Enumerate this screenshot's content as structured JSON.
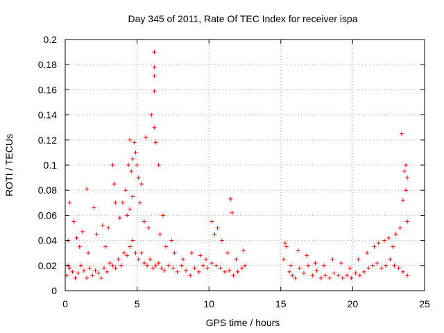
{
  "chart_data": {
    "type": "scatter",
    "title": "Day 345 of 2011, Rate Of TEC Index for receiver ispa",
    "xlabel": "GPS time / hours",
    "ylabel": "ROTI / TECUs",
    "xlim": [
      0,
      25
    ],
    "ylim": [
      0,
      0.2
    ],
    "xticks": [
      0,
      5,
      10,
      15,
      20,
      25
    ],
    "xtick_labels": [
      "0",
      "5",
      "10",
      "15",
      "20",
      "25"
    ],
    "yticks": [
      0,
      0.02,
      0.04,
      0.06,
      0.08,
      0.1,
      0.12,
      0.14,
      0.16,
      0.18,
      0.2
    ],
    "ytick_labels": [
      "0",
      "0.02",
      "0.04",
      "0.06",
      "0.08",
      "0.1",
      "0.12",
      "0.14",
      "0.16",
      "0.18",
      "0.2"
    ],
    "grid": true,
    "marker": "plus",
    "color": "#ff0000",
    "data_gap_hours": [
      12.6,
      15.1
    ],
    "series": [
      {
        "name": "ROTI",
        "x": [
          0.1,
          0.2,
          0.3,
          0.5,
          0.7,
          0.9,
          1.1,
          1.3,
          1.5,
          1.7,
          1.9,
          2.1,
          2.3,
          2.5,
          2.7,
          2.9,
          3.1,
          3.3,
          3.5,
          3.7,
          3.9,
          4.1,
          4.3,
          4.5,
          4.7,
          4.9,
          5.1,
          5.3,
          5.5,
          5.7,
          5.9,
          6.1,
          6.3,
          6.5,
          6.7,
          6.9,
          7.2,
          7.5,
          7.8,
          8.1,
          8.4,
          8.7,
          9.0,
          9.3,
          9.6,
          9.9,
          10.2,
          10.5,
          10.8,
          11.1,
          11.4,
          11.7,
          12.0,
          12.3,
          12.5,
          0.3,
          0.8,
          1.2,
          1.5,
          2.0,
          2.6,
          3.3,
          3.4,
          3.5,
          4.2,
          4.4,
          4.5,
          4.6,
          4.7,
          4.8,
          4.9,
          5.0,
          5.1,
          5.3,
          5.6,
          6.0,
          6.2,
          6.2,
          6.2,
          6.2,
          6.2,
          6.3,
          6.5,
          6.8,
          7.4,
          10.2,
          10.6,
          11.5,
          11.6,
          0.2,
          0.6,
          1.0,
          1.6,
          2.2,
          2.8,
          3.0,
          3.8,
          4.0,
          4.3,
          4.5,
          4.7,
          5.2,
          5.5,
          5.8,
          6.6,
          7.0,
          7.6,
          8.2,
          8.8,
          9.4,
          9.8,
          10.4,
          10.9,
          11.3,
          11.9,
          12.4,
          15.2,
          15.4,
          15.6,
          15.8,
          16.0,
          16.3,
          16.6,
          16.9,
          17.2,
          17.5,
          17.8,
          18.1,
          18.4,
          18.7,
          19.0,
          19.3,
          19.6,
          19.9,
          20.2,
          20.5,
          20.8,
          21.1,
          21.4,
          21.7,
          22.0,
          22.3,
          22.6,
          22.9,
          23.2,
          23.5,
          23.8,
          15.3,
          15.7,
          16.2,
          16.8,
          17.4,
          18.0,
          18.6,
          19.2,
          19.8,
          20.4,
          21.0,
          21.5,
          21.8,
          22.2,
          22.5,
          22.8,
          23.0,
          23.3,
          23.4,
          23.5,
          23.6,
          23.7,
          23.7,
          23.8,
          23.8
        ],
        "y": [
          0.012,
          0.02,
          0.018,
          0.015,
          0.01,
          0.014,
          0.02,
          0.016,
          0.01,
          0.018,
          0.012,
          0.016,
          0.014,
          0.01,
          0.018,
          0.015,
          0.022,
          0.02,
          0.018,
          0.025,
          0.02,
          0.03,
          0.028,
          0.035,
          0.04,
          0.03,
          0.025,
          0.03,
          0.022,
          0.02,
          0.025,
          0.018,
          0.02,
          0.022,
          0.018,
          0.016,
          0.02,
          0.018,
          0.015,
          0.02,
          0.016,
          0.012,
          0.018,
          0.015,
          0.02,
          0.018,
          0.022,
          0.02,
          0.018,
          0.015,
          0.016,
          0.012,
          0.015,
          0.018,
          0.02,
          0.07,
          0.042,
          0.047,
          0.081,
          0.066,
          0.052,
          0.1,
          0.085,
          0.07,
          0.08,
          0.1,
          0.12,
          0.095,
          0.105,
          0.118,
          0.11,
          0.1,
          0.09,
          0.085,
          0.122,
          0.14,
          0.19,
          0.178,
          0.171,
          0.159,
          0.13,
          0.118,
          0.1,
          0.06,
          0.04,
          0.055,
          0.05,
          0.073,
          0.062,
          0.04,
          0.055,
          0.035,
          0.03,
          0.045,
          0.035,
          0.05,
          0.058,
          0.07,
          0.06,
          0.065,
          0.075,
          0.07,
          0.055,
          0.05,
          0.045,
          0.035,
          0.03,
          0.025,
          0.03,
          0.028,
          0.025,
          0.045,
          0.04,
          0.03,
          0.025,
          0.032,
          0.025,
          0.035,
          0.015,
          0.012,
          0.01,
          0.018,
          0.014,
          0.02,
          0.012,
          0.016,
          0.01,
          0.012,
          0.01,
          0.014,
          0.012,
          0.01,
          0.012,
          0.01,
          0.014,
          0.012,
          0.015,
          0.018,
          0.02,
          0.022,
          0.018,
          0.02,
          0.025,
          0.02,
          0.018,
          0.015,
          0.012,
          0.038,
          0.02,
          0.032,
          0.028,
          0.022,
          0.02,
          0.025,
          0.022,
          0.018,
          0.025,
          0.03,
          0.035,
          0.038,
          0.04,
          0.042,
          0.035,
          0.045,
          0.05,
          0.125,
          0.072,
          0.095,
          0.08,
          0.1,
          0.055,
          0.09
        ]
      }
    ]
  }
}
